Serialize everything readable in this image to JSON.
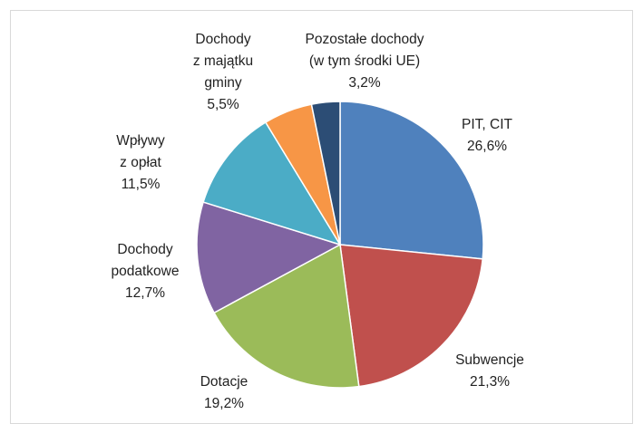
{
  "chart_data": {
    "type": "pie",
    "categories": [
      "PIT, CIT",
      "Subwencje",
      "Dotacje",
      "Dochody\npodatkowe",
      "Wpływy\nz opłat",
      "Dochody\nz majątku\ngminy",
      "Pozostałe dochody\n(w tym środki UE)"
    ],
    "values": [
      26.6,
      21.3,
      19.2,
      12.7,
      11.5,
      5.5,
      3.2
    ],
    "value_labels": [
      "26,6%",
      "21,3%",
      "19,2%",
      "12,7%",
      "11,5%",
      "5,5%",
      "3,2%"
    ],
    "colors": [
      "#4f81bd",
      "#c0504d",
      "#9bbb59",
      "#8064a2",
      "#4bacc6",
      "#f79646",
      "#2c4d75"
    ]
  }
}
